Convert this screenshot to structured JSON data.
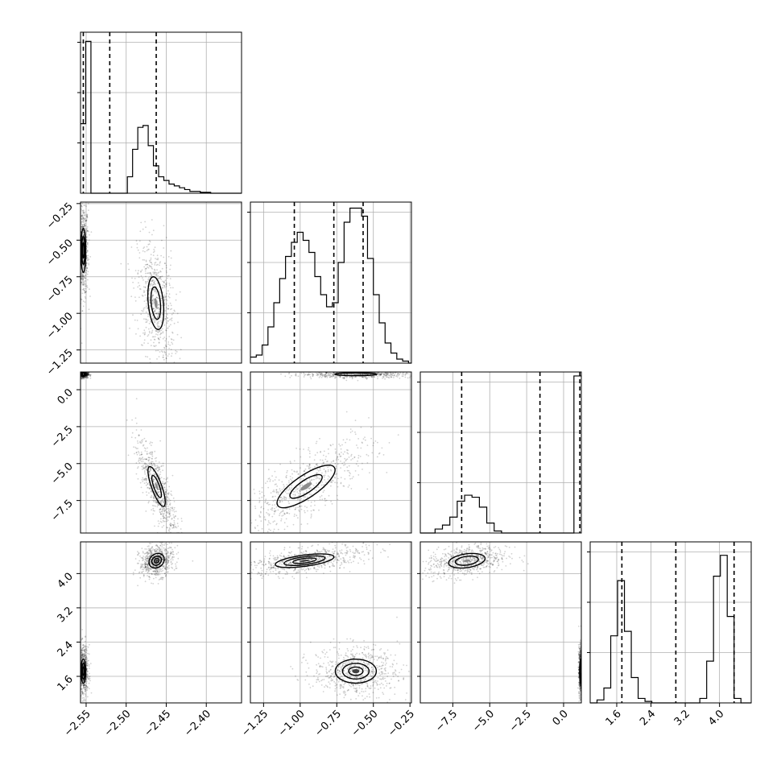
{
  "chart_data": {
    "type": "corner",
    "parameters": [
      {
        "id": "p0",
        "lim": [
          -2.557,
          -2.356
        ],
        "ticks": [
          -2.55,
          -2.5,
          -2.45,
          -2.4
        ],
        "tick_labels": [
          "−2.55",
          "−2.50",
          "−2.45",
          "−2.40"
        ],
        "quantiles": [
          -2.5535,
          -2.5205,
          -2.4625
        ],
        "histogram": {
          "bin_edges": [
            -2.557,
            -2.5505,
            -2.544,
            -2.5375,
            -2.531,
            -2.5245,
            -2.518,
            -2.5115,
            -2.505,
            -2.4985,
            -2.492,
            -2.4855,
            -2.479,
            -2.4725,
            -2.466,
            -2.4595,
            -2.453,
            -2.4465,
            -2.44,
            -2.4335,
            -2.427,
            -2.4205,
            -2.414,
            -2.4075,
            -2.401,
            -2.3945,
            -2.388,
            -2.3815,
            -2.375,
            -2.3685,
            -2.362,
            -2.356
          ],
          "counts": [
            0.38,
            0.83,
            0,
            0,
            0,
            0,
            0,
            0,
            0,
            0.09,
            0.24,
            0.36,
            0.37,
            0.26,
            0.15,
            0.09,
            0.07,
            0.05,
            0.04,
            0.03,
            0.02,
            0.01,
            0.01,
            0.005,
            0.005,
            0,
            0,
            0,
            0,
            0,
            0
          ],
          "ylim": [
            0,
            0.88
          ]
        }
      },
      {
        "id": "p1",
        "lim": [
          -1.34,
          -0.24
        ],
        "ticks": [
          -1.25,
          -1.0,
          -0.75,
          -0.5,
          -0.25
        ],
        "tick_labels": [
          "−1.25",
          "−1.00",
          "−0.75",
          "−0.50",
          "−0.25"
        ],
        "quantiles": [
          -1.04,
          -0.77,
          -0.57
        ],
        "histogram": {
          "bin_edges": [
            -1.34,
            -1.3,
            -1.26,
            -1.22,
            -1.18,
            -1.14,
            -1.1,
            -1.06,
            -1.02,
            -0.98,
            -0.94,
            -0.9,
            -0.86,
            -0.82,
            -0.78,
            -0.74,
            -0.7,
            -0.66,
            -0.62,
            -0.58,
            -0.54,
            -0.5,
            -0.46,
            -0.42,
            -0.38,
            -0.34,
            -0.3,
            -0.26,
            -0.24
          ],
          "counts": [
            0.03,
            0.04,
            0.09,
            0.18,
            0.3,
            0.42,
            0.53,
            0.6,
            0.65,
            0.61,
            0.55,
            0.43,
            0.34,
            0.28,
            0.3,
            0.5,
            0.7,
            0.77,
            0.77,
            0.73,
            0.52,
            0.34,
            0.2,
            0.1,
            0.05,
            0.02,
            0.01,
            0
          ],
          "ylim": [
            0,
            0.8
          ]
        }
      },
      {
        "id": "p2",
        "lim": [
          -9.7,
          1.2
        ],
        "ticks": [
          -7.5,
          -5.0,
          -2.5,
          0.0
        ],
        "tick_labels": [
          "−7.5",
          "−5.0",
          "−2.5",
          "0.0"
        ],
        "quantiles": [
          -6.9,
          -1.6,
          1.1
        ],
        "histogram": {
          "bin_edges": [
            -9.7,
            -9.2,
            -8.7,
            -8.2,
            -7.7,
            -7.2,
            -6.7,
            -6.2,
            -5.7,
            -5.2,
            -4.7,
            -4.2,
            -3.7,
            -3.2,
            -2.7,
            -2.2,
            -1.7,
            -1.2,
            -0.7,
            -0.2,
            0.3,
            0.7,
            1.2
          ],
          "counts": [
            0,
            0,
            0.02,
            0.04,
            0.08,
            0.16,
            0.19,
            0.18,
            0.13,
            0.05,
            0.01,
            0,
            0,
            0,
            0,
            0,
            0,
            0,
            0,
            0,
            0,
            0.79
          ],
          "ylim": [
            0,
            0.81
          ]
        }
      },
      {
        "id": "p3",
        "lim": [
          0.98,
          4.74
        ],
        "ticks": [
          1.6,
          2.4,
          3.2,
          4.0
        ],
        "tick_labels": [
          "1.6",
          "2.4",
          "3.2",
          "4.0"
        ],
        "quantiles": [
          1.72,
          2.98,
          4.34
        ],
        "histogram": {
          "bin_edges": [
            0.98,
            1.14,
            1.3,
            1.46,
            1.62,
            1.78,
            1.94,
            2.1,
            2.26,
            2.42,
            2.58,
            2.74,
            2.9,
            3.06,
            3.22,
            3.38,
            3.54,
            3.7,
            3.86,
            4.02,
            4.18,
            4.34,
            4.5,
            4.74
          ],
          "counts": [
            0,
            0.02,
            0.1,
            0.45,
            0.82,
            0.48,
            0.17,
            0.03,
            0.01,
            0,
            0,
            0,
            0,
            0,
            0,
            0,
            0.03,
            0.28,
            0.85,
            0.99,
            0.58,
            0.03,
            0
          ],
          "ylim": [
            0,
            1.08
          ]
        }
      }
    ],
    "pairs": [
      {
        "x": 0,
        "y": 1,
        "modes": [
          {
            "cx": -2.5535,
            "cy": -0.57,
            "sx": 0.0015,
            "sy": 0.075,
            "rho": 0,
            "weight": 0.5,
            "levels": [
              2.0,
              1.3,
              0.7
            ],
            "cells": [
              0.0,
              0.0,
              0.0
            ]
          },
          {
            "cx": -2.463,
            "cy": -0.93,
            "sx": 0.0055,
            "sy": 0.1,
            "rho": -0.3,
            "weight": 0.5,
            "levels": [
              1.8,
              1.1
            ],
            "cells": [
              0.0,
              0.0,
              0.0
            ]
          }
        ]
      },
      {
        "x": 0,
        "y": 2,
        "modes": [
          {
            "cx": -2.5535,
            "cy": 1.05,
            "sx": 0.0015,
            "sy": 0.06,
            "rho": 0,
            "weight": 0.5,
            "levels": [
              1.6
            ],
            "cells": [
              0.0,
              0.0,
              0.0
            ]
          },
          {
            "cx": -2.462,
            "cy": -6.55,
            "sx": 0.006,
            "sy": 0.75,
            "rho": -0.78,
            "weight": 0.5,
            "levels": [
              1.8,
              1.0
            ],
            "cells": [
              0.0,
              0.0,
              0.0
            ]
          }
        ]
      },
      {
        "x": 0,
        "y": 3,
        "modes": [
          {
            "cx": -2.5535,
            "cy": 1.72,
            "sx": 0.0015,
            "sy": 0.14,
            "rho": 0,
            "weight": 0.5,
            "levels": [
              2.0,
              1.3,
              0.7
            ],
            "cells": [
              0.0,
              0.0,
              0.0
            ]
          },
          {
            "cx": -2.462,
            "cy": 4.3,
            "sx": 0.005,
            "sy": 0.09,
            "rho": 0.2,
            "weight": 0.5,
            "levels": [
              1.9,
              1.2,
              0.6
            ],
            "cells": [
              0.0,
              0.0,
              0.0
            ]
          }
        ]
      },
      {
        "x": 1,
        "y": 2,
        "modes": [
          {
            "cx": -0.62,
            "cy": 1.05,
            "sx": 0.09,
            "sy": 0.06,
            "rho": 0,
            "weight": 0.5,
            "levels": [
              1.6
            ],
            "cells": [
              0.0,
              0.0,
              0.0
            ]
          },
          {
            "cx": -0.96,
            "cy": -6.55,
            "sx": 0.11,
            "sy": 0.8,
            "rho": 0.78,
            "weight": 0.5,
            "levels": [
              1.8,
              1.0
            ],
            "cells": [
              0.0,
              0.0,
              0.0
            ]
          }
        ]
      },
      {
        "x": 1,
        "y": 3,
        "modes": [
          {
            "cx": -0.97,
            "cy": 4.3,
            "sx": 0.1,
            "sy": 0.08,
            "rho": 0.55,
            "weight": 0.5,
            "levels": [
              2.0,
              1.4,
              0.8
            ],
            "cells": [
              0.0,
              0.0,
              0.0
            ]
          },
          {
            "cx": -0.62,
            "cy": 1.72,
            "sx": 0.07,
            "sy": 0.14,
            "rho": 0,
            "weight": 0.5,
            "levels": [
              2.0,
              1.3,
              0.7
            ],
            "cells": [
              0.0,
              0.0,
              0.0
            ]
          }
        ]
      },
      {
        "x": 2,
        "y": 3,
        "modes": [
          {
            "cx": -6.55,
            "cy": 4.3,
            "sx": 0.65,
            "sy": 0.09,
            "rho": 0.3,
            "weight": 0.5,
            "levels": [
              1.9,
              1.2
            ],
            "cells": [
              0.0,
              0.0,
              0.0
            ]
          },
          {
            "cx": 1.15,
            "cy": 1.72,
            "sx": 0.03,
            "sy": 0.14,
            "rho": 0,
            "weight": 0.5,
            "levels": [
              2.0,
              1.3,
              0.7
            ],
            "cells": [
              0.0,
              0.0,
              0.0
            ]
          }
        ]
      }
    ],
    "grid": true,
    "legend": "none"
  }
}
